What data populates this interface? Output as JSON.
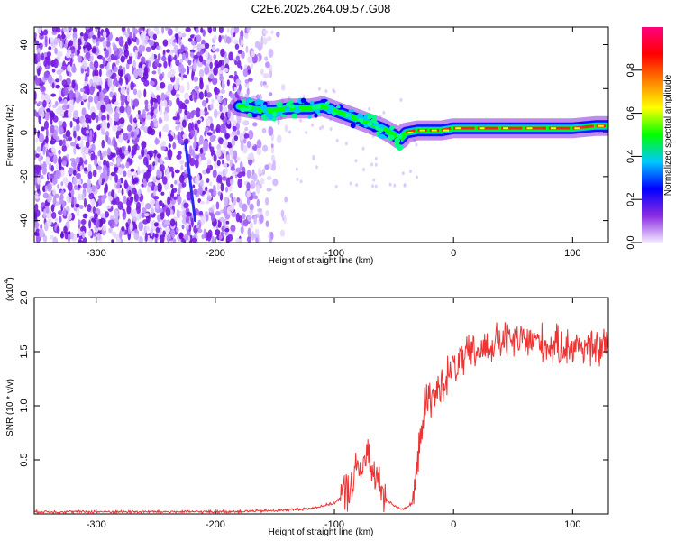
{
  "title": "C2E6.2025.264.09.57.G08",
  "chart_data": [
    {
      "type": "heatmap",
      "title": "C2E6.2025.264.09.57.G08",
      "xlabel": "Height of straight line (km)",
      "ylabel": "Frequency (Hz)",
      "xlim": [
        -352,
        130
      ],
      "ylim": [
        -50,
        48
      ],
      "x_ticks": [
        -300,
        -200,
        -100,
        0,
        100
      ],
      "y_ticks": [
        -40,
        -20,
        0,
        20,
        40
      ],
      "colorbar": {
        "label": "Normalized spectral amplitude",
        "range": [
          0.0,
          1.0
        ],
        "ticks": [
          "0.0",
          "0.2",
          "0.4",
          "0.6",
          "0.8"
        ],
        "colors": [
          "#f3eaff",
          "#8a2be2",
          "#0000ff",
          "#00c8ff",
          "#00ff00",
          "#ffff00",
          "#ff8000",
          "#ff0000",
          "#ff0080"
        ]
      },
      "signal_track": {
        "x": [
          -180,
          -170,
          -160,
          -150,
          -140,
          -130,
          -120,
          -110,
          -100,
          -90,
          -80,
          -70,
          -60,
          -50,
          -45,
          -40,
          -30,
          -20,
          -10,
          0,
          20,
          40,
          60,
          80,
          100,
          120,
          130
        ],
        "y": [
          12,
          11,
          10,
          10,
          11,
          11,
          11,
          12,
          10,
          8,
          6,
          4,
          2,
          -1,
          -3,
          0,
          1,
          1,
          1,
          2,
          2,
          2,
          2,
          2,
          2,
          3,
          3
        ]
      },
      "streak": {
        "x": [
          -225,
          -217
        ],
        "y": [
          -5,
          -40
        ]
      }
    },
    {
      "type": "line",
      "xlabel": "Height of straight line (km)",
      "ylabel": "SNR (10 * v/v)",
      "y_scale_label": "(x10",
      "y_scale_exp": "4",
      "y_scale_close": ")",
      "xlim": [
        -352,
        130
      ],
      "ylim": [
        0,
        2.0
      ],
      "x_ticks": [
        -300,
        -200,
        -100,
        0,
        100
      ],
      "y_ticks": [
        "0.5",
        "1.0",
        "1.5",
        "2.0"
      ],
      "series": [
        {
          "name": "SNR",
          "color": "#ee3333",
          "x": [
            -352,
            -300,
            -250,
            -200,
            -150,
            -120,
            -100,
            -90,
            -80,
            -75,
            -70,
            -60,
            -55,
            -50,
            -45,
            -40,
            -35,
            -30,
            -28,
            -25,
            -22,
            -20,
            -15,
            -10,
            0,
            10,
            20,
            30,
            40,
            50,
            60,
            70,
            80,
            90,
            100,
            110,
            120,
            130
          ],
          "y": [
            0.02,
            0.02,
            0.02,
            0.02,
            0.03,
            0.05,
            0.1,
            0.2,
            0.4,
            0.5,
            0.45,
            0.2,
            0.12,
            0.08,
            0.05,
            0.05,
            0.1,
            0.4,
            0.8,
            0.95,
            1.0,
            1.05,
            1.1,
            1.2,
            1.35,
            1.45,
            1.5,
            1.55,
            1.6,
            1.6,
            1.6,
            1.6,
            1.55,
            1.55,
            1.55,
            1.55,
            1.5,
            1.6
          ]
        }
      ]
    }
  ]
}
